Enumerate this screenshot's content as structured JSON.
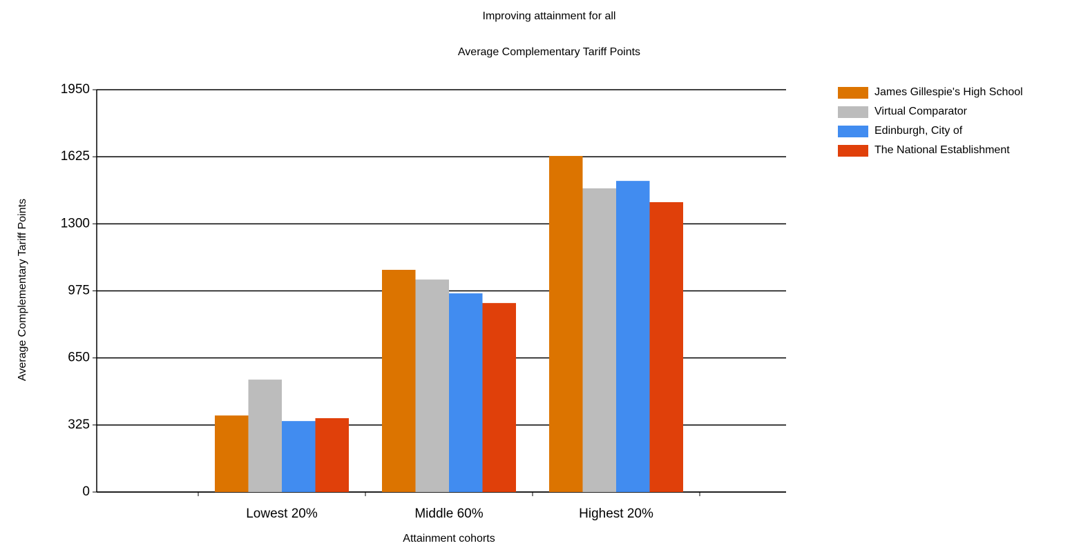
{
  "chart_data": {
    "type": "bar",
    "title": "Improving attainment for all",
    "subtitle": "Average Complementary Tariff Points",
    "y_label": "Average Complementary Tariff Points",
    "x_label": "Attainment cohorts",
    "categories": [
      "Lowest 20%",
      "Middle 60%",
      "Highest 20%"
    ],
    "series": [
      {
        "name": "James Gillespie's High School",
        "color": "#dc7400",
        "values": [
          371,
          1077,
          1629
        ]
      },
      {
        "name": "Virtual Comparator",
        "color": "#bcbcbc",
        "values": [
          545,
          1030,
          1472
        ]
      },
      {
        "name": "Edinburgh, City of",
        "color": "#418cf0",
        "values": [
          344,
          963,
          1508
        ]
      },
      {
        "name": "The National Establishment",
        "color": "#e0400a",
        "values": [
          358,
          916,
          1405
        ]
      }
    ],
    "ylim": [
      0,
      1950
    ],
    "yticks": [
      0,
      325,
      650,
      975,
      1300,
      1625,
      1950
    ],
    "grid": true,
    "legend": "top-right"
  }
}
